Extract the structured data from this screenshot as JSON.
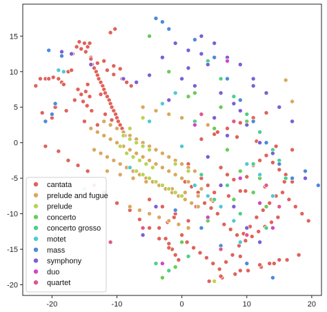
{
  "chart_data": {
    "type": "scatter",
    "title": "",
    "xlabel": "",
    "ylabel": "",
    "xlim": [
      -24.5,
      21.5
    ],
    "ylim": [
      -21.5,
      19.5
    ],
    "xticks": [
      "-20",
      "-10",
      "0",
      "10",
      "20"
    ],
    "xtick_values": [
      -20,
      -10,
      0,
      10,
      20
    ],
    "yticks": [
      "15",
      "10",
      "5",
      "0",
      "-5",
      "-10",
      "-15",
      "-20"
    ],
    "ytick_values": [
      15,
      10,
      5,
      0,
      -5,
      -10,
      -15,
      -20
    ],
    "grid": false,
    "legend_position": "lower-left",
    "series": [
      {
        "name": "cantata",
        "color": "#e0625a",
        "x": [
          -22.5,
          -21.8,
          -21,
          -20.5,
          -19.8,
          -19,
          -18.5,
          -18.2,
          -17.5,
          -17,
          -16.8,
          -16.2,
          -15.8,
          -15.5,
          -15,
          -14.8,
          -14.5,
          -14.2,
          -14,
          -13.8,
          -13.5,
          -13.2,
          -13,
          -12.8,
          -12.5,
          -12.2,
          -12,
          -11.8,
          -11.5,
          -11.2,
          -11,
          -10.8,
          -10.5,
          -10.2,
          -10,
          -9.8,
          -9.5,
          -9.2,
          -9,
          -8.8,
          -16,
          -15.5,
          -14.8,
          -14.2,
          -15.2,
          -14.6,
          -13.9,
          -11,
          -10.3,
          -21.5,
          -20,
          -19.5,
          -17.8,
          -16.5,
          -15,
          -13,
          -11.8,
          -10.8,
          -12.5,
          -14.5,
          -12,
          -10.5,
          -9.2,
          -8.5,
          -7.8,
          -14,
          -13,
          -11.5,
          -10.5,
          -9.5,
          0.5,
          1.5,
          2.5,
          3.5,
          4.5,
          5.5,
          6.5,
          7.5,
          8.5,
          9.5,
          10.5,
          11.5,
          12.5,
          13.5,
          14.5,
          15.5,
          16.5,
          17.5,
          18.5,
          19.5,
          1,
          2,
          3,
          4,
          5,
          6,
          7,
          8,
          9,
          10,
          11,
          12,
          13,
          14,
          15,
          16,
          17,
          0.8,
          1.8,
          2.8,
          3.8,
          4.8,
          5.8,
          6.8,
          7.8,
          8.8,
          9.8,
          10.8,
          11.8,
          12.8,
          13.8,
          14.8,
          -2.5,
          -2,
          -1.5,
          -1,
          -0.5,
          0,
          -3.5,
          -2.2,
          -1.2,
          3,
          5,
          7,
          9,
          11,
          13,
          15,
          17,
          4.2,
          6.2,
          8.2,
          10.2,
          12.2,
          14.2,
          16.2,
          2.2,
          4.8,
          7.2,
          9.8,
          12.8,
          15.8,
          5.5,
          8.5,
          11.5,
          14.5,
          9,
          13.5,
          -21,
          -19,
          -17.5,
          -16,
          -14.5,
          -13.5,
          -12,
          -10,
          -8,
          -6.5,
          -5,
          -3.5,
          -2,
          6,
          9,
          12,
          15,
          18,
          -5,
          -3,
          -1,
          1,
          3
        ],
        "y": [
          8,
          9,
          9,
          9,
          9.2,
          9,
          8.5,
          8.2,
          10,
          10.2,
          12.5,
          13.5,
          14.2,
          13.2,
          14,
          12.8,
          13.5,
          14,
          12,
          11,
          10.5,
          10,
          9.5,
          9,
          8.5,
          8,
          7.5,
          7,
          6.5,
          6,
          5.5,
          5,
          4.5,
          4,
          3.5,
          3,
          2.5,
          2,
          1.5,
          1,
          7.5,
          6.8,
          7.2,
          6.5,
          5.8,
          5.2,
          4.5,
          15.5,
          16,
          4.2,
          3.5,
          5,
          4.5,
          6,
          3,
          2.5,
          4,
          3.2,
          6.8,
          8.2,
          11.5,
          10.8,
          9,
          8.5,
          8,
          11.8,
          11.2,
          10.2,
          9.6,
          10.4,
          -5.5,
          -6.2,
          -7,
          -8.5,
          -9.2,
          -10,
          -11.5,
          -12.2,
          -13,
          -12.8,
          -11.8,
          -10.5,
          -9.5,
          -8.5,
          -7.5,
          -7,
          -8,
          -9,
          -10,
          -11,
          -3,
          -4,
          -5,
          -6,
          -7,
          -3.5,
          -4.5,
          -5.2,
          -6.8,
          -4.8,
          -3.2,
          -2.5,
          -1.8,
          -2.8,
          -3.8,
          -4.5,
          -5.5,
          -14,
          -14.8,
          -15.5,
          -16.2,
          -17,
          -17.8,
          -16.8,
          -15.8,
          -14.5,
          -13.8,
          -13.2,
          -12.5,
          -11.8,
          -11.2,
          -10.5,
          -13.5,
          -14.2,
          -15,
          -15.8,
          -16.5,
          -13,
          -12,
          -11.2,
          -10.5,
          0.5,
          1.2,
          2,
          2.8,
          3.5,
          4.2,
          5,
          -1,
          -19.5,
          -19,
          -18.5,
          -18,
          -17.5,
          -17,
          -16.5,
          -9,
          -8.2,
          -7.5,
          -6.8,
          -6.2,
          -5.5,
          1.5,
          0.8,
          0.2,
          -0.5,
          -16,
          -17,
          -0.5,
          -1.2,
          -2.5,
          -3.2,
          -4,
          -6,
          -7,
          -8.5,
          -9.5,
          -10.8,
          -12,
          -13.5,
          -14.8,
          -18.8,
          -18,
          -17.2,
          -16.5,
          -15.8,
          -8,
          -9,
          -10,
          -11,
          -12
        ]
      },
      {
        "name": "prelude and fugue",
        "color": "#d9a85f",
        "x": [
          -14,
          -13,
          -12,
          -11,
          -10,
          -9,
          -8,
          -7,
          -6,
          -5,
          -4,
          -3,
          -2,
          -1,
          0,
          1,
          2,
          3,
          -13.5,
          -12.5,
          -11.5,
          -10.5,
          -9.5,
          -8.5,
          -7.5,
          -6.5,
          -5.5,
          -4.5,
          -3.5,
          -2.5,
          -1.5,
          -0.5,
          0.5,
          1.5,
          2.5,
          -12,
          -11,
          -10,
          -9,
          -8,
          -7,
          -6,
          -5,
          -4,
          -3,
          -2,
          -1,
          0,
          1,
          2,
          -11.5,
          -9.5,
          -7.5,
          -5.5,
          -3.5,
          -1.5,
          0.5,
          2.5,
          4.5,
          -6,
          -4,
          -2,
          0,
          2,
          4,
          -8,
          -6.5,
          -5,
          -3.5,
          -2,
          -0.5,
          1,
          16,
          17
        ],
        "y": [
          2,
          1.5,
          1,
          0.5,
          0,
          -0.5,
          -1,
          -1.5,
          -2,
          -2.5,
          -3,
          -3.5,
          -4,
          -4.5,
          -5,
          -5.5,
          -6,
          -6.5,
          -1,
          -1.5,
          -2,
          -2.5,
          -3,
          -3.5,
          -4,
          -4.5,
          -5,
          -5.5,
          -6,
          -6.5,
          -7,
          -7.5,
          -8,
          -8.5,
          -9,
          3,
          2.5,
          2,
          1.5,
          1,
          0.5,
          0,
          -0.5,
          -1,
          -1.5,
          -2,
          -2.5,
          -3,
          -3.5,
          -4,
          -4,
          -4.5,
          -5,
          -5.5,
          -6,
          -6.5,
          -7,
          -7.5,
          -8,
          5,
          4.5,
          4,
          3.5,
          3,
          2.5,
          -9,
          -9.5,
          -10,
          -10.5,
          -11,
          -11.5,
          -12,
          8.8,
          5.8
        ]
      },
      {
        "name": "prelude",
        "color": "#b8d452",
        "x": [
          -9,
          -8,
          -7,
          -6,
          -5,
          -8.5,
          -7.5,
          -6.5,
          -5.5,
          -4.5,
          -7,
          -6,
          -5,
          -4,
          -3,
          -2,
          -1,
          0,
          -9.5,
          -8,
          -6,
          -1,
          1,
          5
        ],
        "y": [
          1,
          0.5,
          0,
          -0.5,
          -1,
          -1.5,
          -2,
          -2.5,
          -3,
          -3.5,
          -4,
          -4.5,
          -5,
          -5.5,
          -6,
          -6.5,
          -7,
          -7.5,
          -0.5,
          2,
          3.5,
          -3,
          -4,
          -19.5
        ]
      },
      {
        "name": "concerto",
        "color": "#6acb58",
        "x": [
          -5,
          -2,
          1,
          3,
          5,
          7,
          9,
          11,
          13,
          -3,
          0,
          4,
          8,
          12,
          2,
          6,
          10,
          -1,
          -19.5
        ],
        "y": [
          15,
          10,
          6.5,
          4,
          2,
          -1,
          -4,
          -7,
          -9,
          -19,
          -14,
          -11,
          -8,
          -5,
          7,
          5,
          3,
          -17.5,
          -13
        ]
      },
      {
        "name": "concerto grosso",
        "color": "#4bd08a",
        "x": [
          4,
          6,
          8,
          10,
          12,
          14,
          3,
          7,
          11,
          15,
          5,
          9,
          13,
          2,
          16,
          -4,
          -2,
          1
        ],
        "y": [
          11.5,
          9,
          6.5,
          4,
          1.5,
          -1,
          -4.5,
          -6,
          -3,
          -2.5,
          -8,
          -10,
          -12,
          3,
          -5,
          -17,
          -18,
          -16
        ]
      },
      {
        "name": "motet",
        "color": "#4fc9d4",
        "x": [
          -19,
          -18.2,
          -5,
          -3,
          -1,
          2,
          4,
          6,
          8,
          10,
          12,
          14,
          -8,
          0,
          9,
          -15
        ],
        "y": [
          10.2,
          10,
          3,
          5.5,
          7,
          -6,
          -7.5,
          -9,
          -11,
          -3,
          -4.5,
          -7.5,
          -3.5,
          -0.5,
          -14,
          -6.5
        ]
      },
      {
        "name": "mass",
        "color": "#4e8ad8",
        "x": [
          -20.5,
          -19.5,
          -20,
          -21,
          -4,
          -3,
          -2,
          2,
          5,
          7,
          9,
          11,
          13,
          15,
          17,
          19,
          21,
          -1,
          3,
          6,
          10,
          14,
          -18.5
        ],
        "y": [
          13,
          5.5,
          4,
          3,
          17.5,
          17,
          16,
          14.5,
          12,
          9,
          6,
          3,
          0,
          -3,
          -5,
          -4,
          -6,
          -9.5,
          -12,
          -14.5,
          -17,
          -19,
          12.2
        ]
      },
      {
        "name": "symphony",
        "color": "#7a5fd6",
        "x": [
          -18.5,
          -17,
          -14,
          -9,
          -7,
          -5,
          -3,
          -1,
          1,
          3,
          5,
          7,
          9,
          11,
          13,
          15,
          17,
          19,
          0,
          2,
          4,
          6,
          8,
          10,
          12,
          14,
          -2,
          4,
          6,
          8,
          10,
          12,
          -6,
          -4,
          1,
          3,
          5,
          7,
          9,
          11
        ],
        "y": [
          12.8,
          12.5,
          11,
          9,
          8.5,
          9.5,
          12,
          14,
          13,
          15,
          14,
          12,
          11,
          9,
          7,
          5,
          3,
          -5,
          9,
          8,
          11,
          7,
          5.5,
          2.5,
          0,
          -1.5,
          6,
          -2,
          -6,
          -9,
          -12,
          -14,
          -13,
          -9,
          10.5,
          12.5,
          3.5,
          1,
          4.5,
          8
        ],
        "_": ""
      },
      {
        "name": "duo",
        "color": "#d048c4",
        "x": [
          2,
          7,
          -3,
          12,
          4,
          9,
          14
        ],
        "y": [
          2.5,
          11.5,
          -17,
          -8.5,
          -10.5,
          -5,
          -12
        ]
      },
      {
        "name": "quartet",
        "color": "#e0588a",
        "x": [
          3,
          8,
          -11,
          13,
          6,
          10,
          15,
          -6
        ],
        "y": [
          4,
          3,
          -14,
          -6,
          -15,
          -13,
          -9,
          -12
        ]
      }
    ]
  }
}
